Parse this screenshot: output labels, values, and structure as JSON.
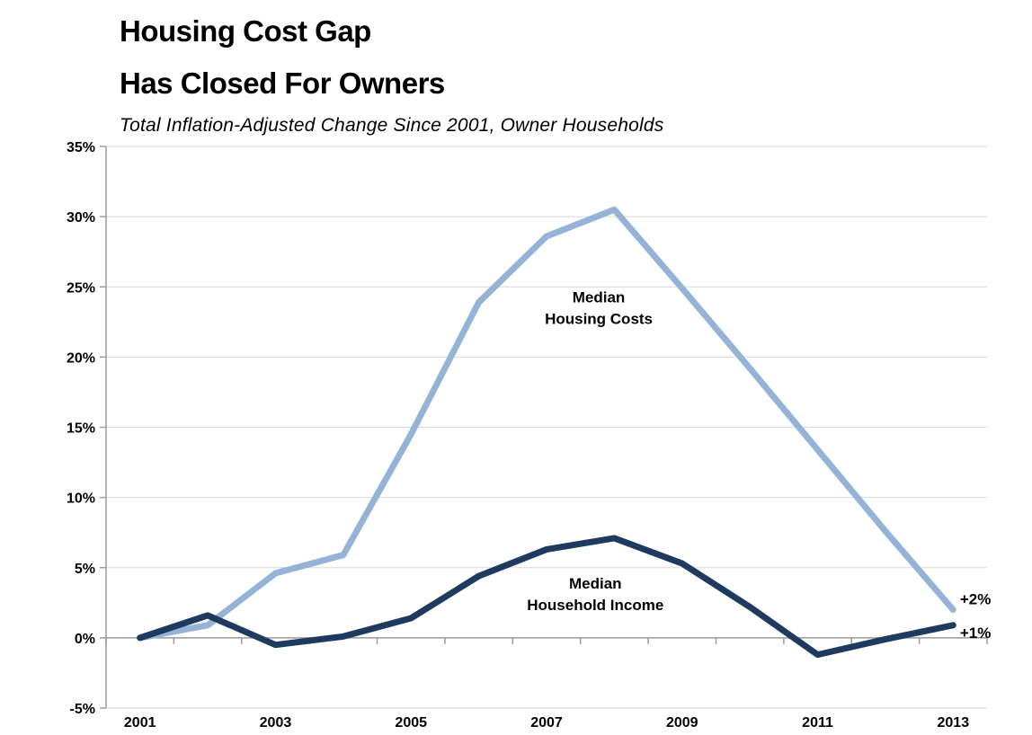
{
  "title": {
    "line1": "Housing Cost Gap",
    "line2": "Has Closed For Owners"
  },
  "subtitle": "Total Inflation-Adjusted Change Since 2001, Owner Households",
  "chart_data": {
    "type": "line",
    "x": [
      2001,
      2002,
      2003,
      2004,
      2005,
      2006,
      2007,
      2008,
      2009,
      2010,
      2011,
      2012,
      2013
    ],
    "x_tick_labels": [
      "2001",
      "2003",
      "2005",
      "2007",
      "2009",
      "2011",
      "2013"
    ],
    "x_label_every": 2,
    "ylim": [
      -5,
      35
    ],
    "y_ticks": [
      {
        "value": 35,
        "label": "35%"
      },
      {
        "value": 30,
        "label": "30%"
      },
      {
        "value": 25,
        "label": "25%"
      },
      {
        "value": 20,
        "label": "20%"
      },
      {
        "value": 15,
        "label": "15%"
      },
      {
        "value": 10,
        "label": "10%"
      },
      {
        "value": 5,
        "label": "5%"
      },
      {
        "value": 0,
        "label": "0%"
      },
      {
        "value": -5,
        "label": "-5%"
      }
    ],
    "grid": "horizontal",
    "legend": "inline-annotations",
    "series": [
      {
        "name": "Median Housing Costs",
        "color": "#95B3D7",
        "stroke_width": 7,
        "values": [
          0.0,
          0.9,
          4.6,
          5.9,
          14.5,
          23.9,
          28.6,
          30.5,
          24.9,
          19.2,
          13.4,
          7.6,
          2.0
        ]
      },
      {
        "name": "Median Household Income",
        "color": "#1F3A5F",
        "stroke_width": 7,
        "values": [
          0.0,
          1.6,
          -0.5,
          0.1,
          1.4,
          4.4,
          6.3,
          7.1,
          5.3,
          2.2,
          -1.2,
          -0.1,
          0.9
        ]
      }
    ],
    "annotations": [
      {
        "id": "housing-costs-label",
        "lines": [
          "Median",
          "Housing Costs"
        ],
        "x": 2007.77,
        "y": 23.9,
        "align": "middle"
      },
      {
        "id": "household-income-label",
        "lines": [
          "Median",
          "Household Income"
        ],
        "x": 2007.72,
        "y": 3.5,
        "align": "middle"
      },
      {
        "id": "housing-costs-end-label",
        "lines": [
          "+2%"
        ],
        "x": 2013.1,
        "y": 2.4,
        "align": "start"
      },
      {
        "id": "household-income-end-label",
        "lines": [
          "+1%"
        ],
        "x": 2013.1,
        "y": 0.0,
        "align": "start"
      }
    ],
    "colors": {
      "background": "#FFFFFF",
      "gridline": "#D9D9D9",
      "axis": "#9B9B9B",
      "text": "#000000"
    }
  }
}
